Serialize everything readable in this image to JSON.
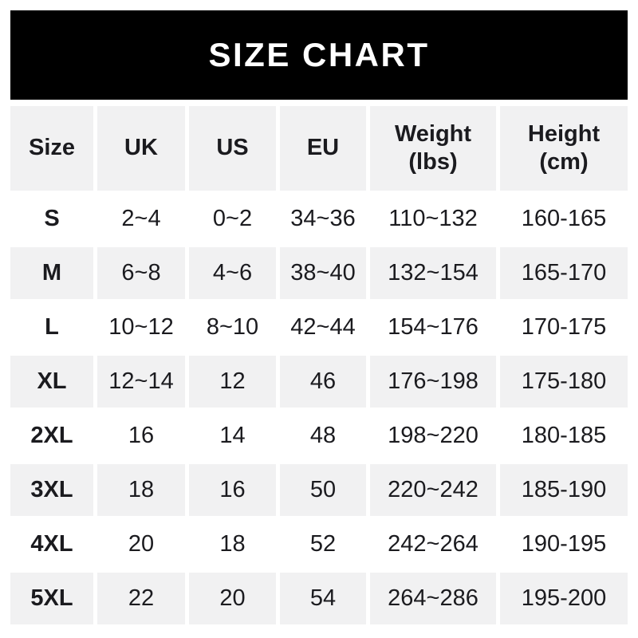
{
  "banner": {
    "title": "SIZE CHART"
  },
  "colors": {
    "banner_bg": "#000000",
    "banner_text": "#ffffff",
    "shaded_row_bg": "#f1f1f2",
    "text": "#1b1b1f",
    "page_bg": "#ffffff"
  },
  "chart_data": {
    "type": "table",
    "title": "SIZE CHART",
    "columns": [
      "Size",
      "UK",
      "US",
      "EU",
      "Weight (lbs)",
      "Height (cm)"
    ],
    "rows": [
      [
        "S",
        "2~4",
        "0~2",
        "34~36",
        "110~132",
        "160-165"
      ],
      [
        "M",
        "6~8",
        "4~6",
        "38~40",
        "132~154",
        "165-170"
      ],
      [
        "L",
        "10~12",
        "8~10",
        "42~44",
        "154~176",
        "170-175"
      ],
      [
        "XL",
        "12~14",
        "12",
        "46",
        "176~198",
        "175-180"
      ],
      [
        "2XL",
        "16",
        "14",
        "48",
        "198~220",
        "180-185"
      ],
      [
        "3XL",
        "18",
        "16",
        "50",
        "220~242",
        "185-190"
      ],
      [
        "4XL",
        "20",
        "18",
        "52",
        "242~264",
        "190-195"
      ],
      [
        "5XL",
        "22",
        "20",
        "54",
        "264~286",
        "195-200"
      ]
    ],
    "layout": {
      "shaded_rows": [
        "header",
        "M",
        "XL",
        "3XL",
        "5XL"
      ],
      "range_separator_body": "~",
      "range_separator_height": "-"
    }
  }
}
